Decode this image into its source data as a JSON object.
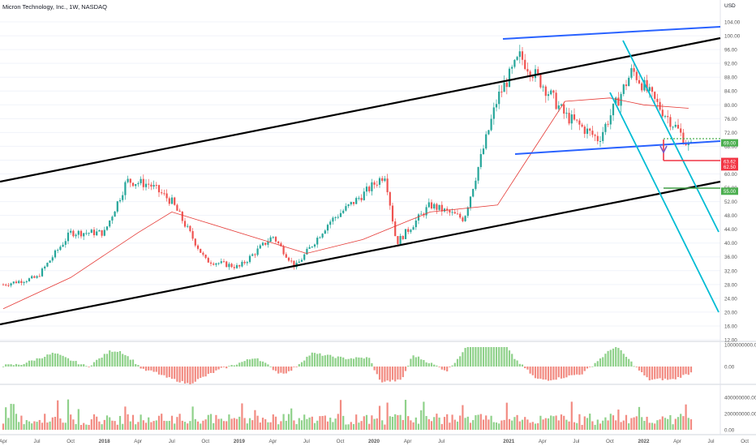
{
  "header": {
    "title": "Micron Technology, Inc., 1W, NASDAQ",
    "currency": "USD"
  },
  "colors": {
    "up": "#26a69a",
    "down": "#ef5350",
    "up_light": "#8fd18a",
    "down_light": "#f28b82",
    "ma": "#e53935",
    "channel": "#000000",
    "wedge": "#2962ff",
    "fall_channel": "#00bcd4",
    "green_label": "#4caf50",
    "red_label": "#f23645",
    "grid": "#f0f3fa",
    "axis_text": "#555555"
  },
  "chart_data": [
    {
      "type": "line",
      "name": "price",
      "title": "Micron Technology, Inc., 1W, NASDAQ",
      "ylabel": "USD",
      "ylim": [
        12,
        106
      ],
      "yticks": [
        "104.00",
        "100.00",
        "96.00",
        "92.00",
        "88.00",
        "84.00",
        "80.00",
        "76.00",
        "72.00",
        "68.00",
        "64.00",
        "60.00",
        "56.00",
        "52.00",
        "48.00",
        "44.00",
        "40.00",
        "36.00",
        "32.00",
        "28.00",
        "24.00",
        "20.00",
        "16.00",
        "12.00"
      ],
      "xticks": [
        "Apr",
        "Jul",
        "Oct",
        "2018",
        "Apr",
        "Jul",
        "Oct",
        "2019",
        "Apr",
        "Jul",
        "Oct",
        "2020",
        "Apr",
        "Jul",
        "2021",
        "Apr",
        "Jul",
        "Oct",
        "2022",
        "Apr",
        "Jul",
        "Oct"
      ],
      "series": [
        {
          "kind": "candles-close",
          "x": [
            "2017-04",
            "2017-07",
            "2017-10",
            "2018-01",
            "2018-03",
            "2018-05",
            "2018-07",
            "2018-10",
            "2019-01",
            "2019-04",
            "2019-06",
            "2019-09",
            "2019-12",
            "2020-02",
            "2020-03",
            "2020-06",
            "2020-09",
            "2020-12",
            "2021-02",
            "2021-04",
            "2021-06",
            "2021-09",
            "2021-12",
            "2022-02",
            "2022-04",
            "2022-05"
          ],
          "values": [
            28,
            30,
            43,
            43,
            58,
            57,
            52,
            35,
            33,
            42,
            33,
            46,
            54,
            60,
            40,
            51,
            47,
            82,
            94,
            86,
            77,
            70,
            90,
            81,
            73,
            68
          ]
        },
        {
          "kind": "moving-average",
          "x": [
            "2017-04",
            "2017-10",
            "2018-04",
            "2018-07",
            "2018-10",
            "2019-04",
            "2019-07",
            "2019-12",
            "2020-06",
            "2020-12",
            "2021-03",
            "2021-06",
            "2021-10",
            "2022-01",
            "2022-05"
          ],
          "values": [
            21,
            30,
            43,
            49,
            46,
            40,
            37,
            41,
            49,
            51,
            66,
            81,
            82,
            80,
            79
          ]
        }
      ],
      "price_labels": [
        {
          "text": "69.00",
          "value": 69,
          "color": "green"
        },
        {
          "text": "63.62",
          "value": 63.62,
          "color": "red"
        },
        {
          "text": "62.50",
          "value": 62.5,
          "color": "red"
        },
        {
          "text": "55.00",
          "value": 55,
          "color": "green"
        }
      ]
    },
    {
      "type": "bar",
      "name": "oscillator",
      "yticks": [
        "1000000000.00",
        "0.00"
      ]
    },
    {
      "type": "bar",
      "name": "volume",
      "yticks": [
        "400000000.00",
        "200000000.00",
        "0.00"
      ]
    }
  ]
}
